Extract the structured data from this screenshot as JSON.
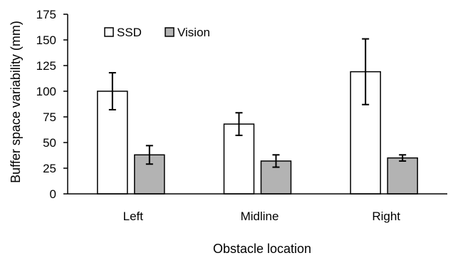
{
  "chart_data": {
    "type": "bar",
    "title": "",
    "xlabel": "Obstacle location",
    "ylabel": "Buffer space variability (mm)",
    "ylim": [
      0,
      175
    ],
    "yticks": [
      0,
      25,
      50,
      75,
      100,
      125,
      150,
      175
    ],
    "categories": [
      "Left",
      "Midline",
      "Right"
    ],
    "series": [
      {
        "name": "SSD",
        "color": "#ffffff",
        "values": [
          100,
          68,
          119
        ],
        "error": [
          18,
          11,
          32
        ]
      },
      {
        "name": "Vision",
        "color": "#b3b3b3",
        "values": [
          38,
          32,
          35
        ],
        "error": [
          9,
          6,
          3
        ]
      }
    ],
    "legend_position": "top-left",
    "grid": false,
    "error_bars": true
  }
}
